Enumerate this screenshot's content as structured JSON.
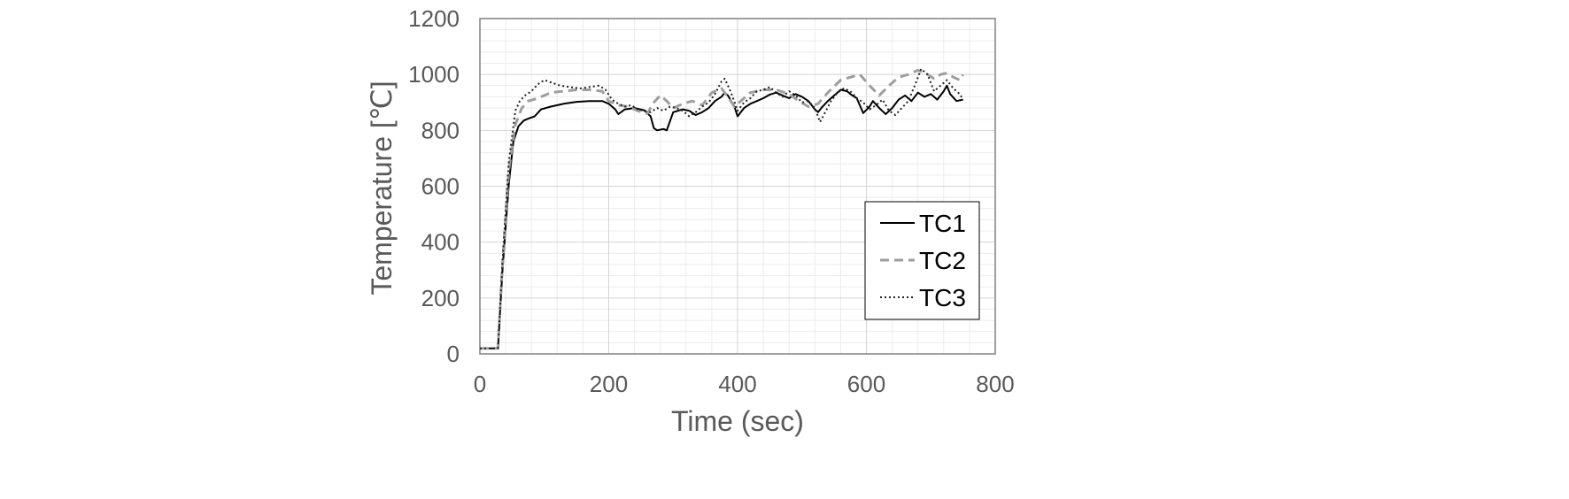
{
  "chart_data": {
    "type": "line",
    "xlabel": "Time (sec)",
    "ylabel": "Temperature [℃]",
    "xlim": [
      0,
      800
    ],
    "ylim": [
      0,
      1200
    ],
    "x_ticks": [
      "0",
      "200",
      "400",
      "600",
      "800"
    ],
    "y_ticks": [
      "0",
      "200",
      "400",
      "600",
      "800",
      "1000",
      "1200"
    ],
    "grid": true,
    "legend": {
      "position": "right-middle"
    },
    "series": [
      {
        "name": "TC1",
        "color": "#000000",
        "dash": "solid",
        "x": [
          0,
          20,
          28,
          35,
          45,
          52,
          60,
          68,
          75,
          85,
          95,
          110,
          130,
          150,
          170,
          190,
          200,
          210,
          215,
          225,
          240,
          255,
          265,
          270,
          275,
          285,
          290,
          300,
          315,
          325,
          335,
          345,
          355,
          365,
          375,
          380,
          385,
          395,
          400,
          410,
          420,
          430,
          440,
          450,
          460,
          470,
          480,
          490,
          500,
          510,
          520,
          525,
          530,
          540,
          550,
          560,
          570,
          575,
          585,
          595,
          605,
          610,
          620,
          630,
          640,
          650,
          660,
          670,
          680,
          690,
          700,
          710,
          720,
          725,
          730,
          740,
          750
        ],
        "y": [
          20,
          20,
          20,
          300,
          610,
          760,
          815,
          835,
          842,
          850,
          875,
          885,
          895,
          902,
          905,
          905,
          895,
          875,
          858,
          875,
          880,
          872,
          850,
          808,
          800,
          805,
          800,
          865,
          875,
          870,
          855,
          865,
          880,
          905,
          920,
          935,
          925,
          885,
          850,
          880,
          895,
          905,
          915,
          928,
          935,
          925,
          915,
          930,
          920,
          905,
          875,
          865,
          880,
          905,
          925,
          945,
          940,
          930,
          915,
          862,
          885,
          905,
          880,
          858,
          880,
          910,
          925,
          905,
          935,
          920,
          930,
          910,
          940,
          960,
          930,
          905,
          910
        ]
      },
      {
        "name": "TC2",
        "color": "#9e9e9e",
        "dash": "dashed",
        "x": [
          0,
          20,
          28,
          35,
          45,
          55,
          65,
          75,
          90,
          110,
          130,
          150,
          170,
          190,
          200,
          215,
          230,
          245,
          260,
          270,
          280,
          290,
          300,
          315,
          330,
          345,
          360,
          375,
          385,
          395,
          405,
          420,
          440,
          460,
          480,
          495,
          510,
          525,
          540,
          560,
          575,
          590,
          605,
          620,
          635,
          650,
          665,
          680,
          695,
          705,
          715,
          725,
          735,
          745,
          750
        ],
        "y": [
          20,
          20,
          20,
          320,
          660,
          820,
          880,
          905,
          915,
          935,
          940,
          945,
          945,
          940,
          905,
          890,
          885,
          870,
          860,
          900,
          925,
          905,
          880,
          895,
          905,
          890,
          935,
          950,
          920,
          885,
          905,
          935,
          945,
          945,
          930,
          905,
          885,
          895,
          935,
          980,
          990,
          1000,
          960,
          925,
          960,
          990,
          1000,
          1015,
          1000,
          985,
          1000,
          1005,
          990,
          980,
          1000
        ]
      },
      {
        "name": "TC3",
        "color": "#222222",
        "dash": "dotted",
        "x": [
          0,
          20,
          28,
          35,
          45,
          55,
          62,
          70,
          80,
          90,
          100,
          110,
          125,
          140,
          155,
          170,
          185,
          195,
          205,
          215,
          225,
          235,
          245,
          255,
          265,
          275,
          285,
          295,
          305,
          315,
          325,
          335,
          345,
          355,
          365,
          375,
          380,
          390,
          400,
          410,
          420,
          430,
          440,
          450,
          460,
          470,
          480,
          490,
          500,
          510,
          520,
          528,
          535,
          545,
          555,
          565,
          575,
          585,
          595,
          605,
          615,
          625,
          635,
          645,
          655,
          665,
          675,
          685,
          695,
          705,
          715,
          725,
          735,
          745,
          750
        ],
        "y": [
          20,
          20,
          20,
          330,
          690,
          870,
          905,
          925,
          940,
          965,
          980,
          972,
          960,
          955,
          950,
          955,
          960,
          945,
          910,
          895,
          885,
          890,
          875,
          870,
          865,
          880,
          870,
          885,
          880,
          870,
          850,
          865,
          885,
          900,
          930,
          975,
          985,
          935,
          870,
          900,
          915,
          940,
          945,
          955,
          935,
          920,
          940,
          925,
          900,
          905,
          880,
          830,
          860,
          905,
          935,
          950,
          940,
          915,
          900,
          875,
          890,
          910,
          870,
          855,
          880,
          905,
          960,
          1020,
          1000,
          940,
          960,
          980,
          950,
          930,
          910
        ]
      }
    ]
  }
}
